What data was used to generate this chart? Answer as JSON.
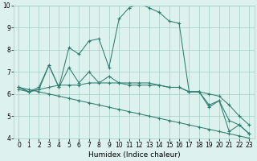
{
  "x": [
    0,
    1,
    2,
    3,
    4,
    5,
    6,
    7,
    8,
    9,
    10,
    11,
    12,
    13,
    14,
    15,
    16,
    17,
    18,
    19,
    20,
    21,
    22,
    23
  ],
  "line1": [
    6.3,
    6.1,
    6.2,
    7.3,
    6.3,
    8.1,
    7.8,
    8.4,
    8.5,
    7.2,
    9.4,
    9.9,
    10.1,
    9.9,
    9.7,
    9.3,
    9.2,
    6.1,
    6.1,
    5.4,
    5.7,
    4.3,
    4.6,
    4.2
  ],
  "line2": [
    6.3,
    6.1,
    6.3,
    7.3,
    6.3,
    7.2,
    6.5,
    7.0,
    6.5,
    6.8,
    6.5,
    6.4,
    6.4,
    6.4,
    6.4,
    6.3,
    6.3,
    6.1,
    6.1,
    5.5,
    5.7,
    4.8,
    4.6,
    4.2
  ],
  "line3": [
    6.2,
    6.1,
    6.2,
    6.3,
    6.4,
    6.4,
    6.4,
    6.5,
    6.5,
    6.5,
    6.5,
    6.5,
    6.5,
    6.5,
    6.4,
    6.3,
    6.3,
    6.1,
    6.1,
    6.0,
    5.9,
    5.5,
    5.0,
    4.6
  ],
  "line4": [
    6.3,
    6.2,
    6.1,
    6.0,
    5.9,
    5.8,
    5.7,
    5.6,
    5.5,
    5.4,
    5.3,
    5.2,
    5.1,
    5.0,
    4.9,
    4.8,
    4.7,
    4.6,
    4.5,
    4.4,
    4.3,
    4.2,
    4.1,
    4.0
  ],
  "color": "#2e7d6e",
  "bg_color": "#ddf2ee",
  "grid_color": "#9ecdc5",
  "xlabel": "Humidex (Indice chaleur)",
  "ylim": [
    4,
    10
  ],
  "xlim": [
    -0.5,
    23.5
  ],
  "yticks": [
    4,
    5,
    6,
    7,
    8,
    9,
    10
  ],
  "xticks": [
    0,
    1,
    2,
    3,
    4,
    5,
    6,
    7,
    8,
    9,
    10,
    11,
    12,
    13,
    14,
    15,
    16,
    17,
    18,
    19,
    20,
    21,
    22,
    23
  ],
  "xlabel_fontsize": 6.5,
  "tick_fontsize": 5.5
}
